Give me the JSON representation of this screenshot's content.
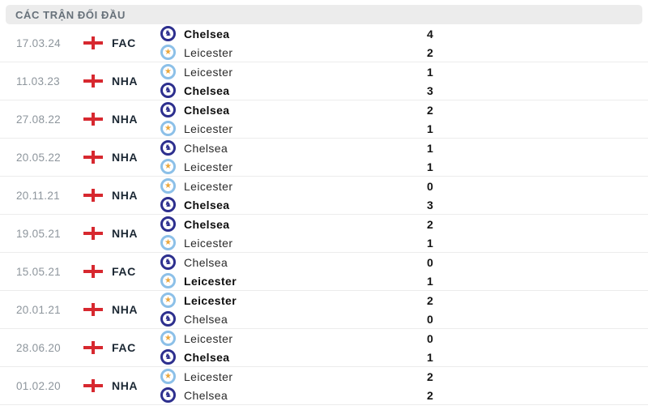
{
  "header": {
    "title": "CÁC TRẬN ĐỐI ĐẦU"
  },
  "colors": {
    "header_bg": "#ececec",
    "header_text": "#67717a",
    "flag_red": "#d7282f",
    "chelsea_navy": "#2d2f8e",
    "leicester_blue": "#8cc0e8",
    "leicester_gold": "#eba73c",
    "date_gray": "#8d959c",
    "separator": "#ececec"
  },
  "badges": {
    "chelsea": {
      "glyph": "♞",
      "ring": "#2d2f8e",
      "glyph_color": "#2d2f8e"
    },
    "leicester": {
      "glyph": "★",
      "ring": "#8cc0e8",
      "glyph_color": "#eba73c"
    }
  },
  "matches": [
    {
      "date": "17.03.24",
      "competition": "FAC",
      "teams": [
        {
          "name": "Chelsea",
          "badge": "chelsea",
          "score": "4",
          "winner": true
        },
        {
          "name": "Leicester",
          "badge": "leicester",
          "score": "2",
          "winner": false
        }
      ]
    },
    {
      "date": "11.03.23",
      "competition": "NHA",
      "teams": [
        {
          "name": "Leicester",
          "badge": "leicester",
          "score": "1",
          "winner": false
        },
        {
          "name": "Chelsea",
          "badge": "chelsea",
          "score": "3",
          "winner": true
        }
      ]
    },
    {
      "date": "27.08.22",
      "competition": "NHA",
      "teams": [
        {
          "name": "Chelsea",
          "badge": "chelsea",
          "score": "2",
          "winner": true
        },
        {
          "name": "Leicester",
          "badge": "leicester",
          "score": "1",
          "winner": false
        }
      ]
    },
    {
      "date": "20.05.22",
      "competition": "NHA",
      "teams": [
        {
          "name": "Chelsea",
          "badge": "chelsea",
          "score": "1",
          "winner": false
        },
        {
          "name": "Leicester",
          "badge": "leicester",
          "score": "1",
          "winner": false
        }
      ]
    },
    {
      "date": "20.11.21",
      "competition": "NHA",
      "teams": [
        {
          "name": "Leicester",
          "badge": "leicester",
          "score": "0",
          "winner": false
        },
        {
          "name": "Chelsea",
          "badge": "chelsea",
          "score": "3",
          "winner": true
        }
      ]
    },
    {
      "date": "19.05.21",
      "competition": "NHA",
      "teams": [
        {
          "name": "Chelsea",
          "badge": "chelsea",
          "score": "2",
          "winner": true
        },
        {
          "name": "Leicester",
          "badge": "leicester",
          "score": "1",
          "winner": false
        }
      ]
    },
    {
      "date": "15.05.21",
      "competition": "FAC",
      "teams": [
        {
          "name": "Chelsea",
          "badge": "chelsea",
          "score": "0",
          "winner": false
        },
        {
          "name": "Leicester",
          "badge": "leicester",
          "score": "1",
          "winner": true
        }
      ]
    },
    {
      "date": "20.01.21",
      "competition": "NHA",
      "teams": [
        {
          "name": "Leicester",
          "badge": "leicester",
          "score": "2",
          "winner": true
        },
        {
          "name": "Chelsea",
          "badge": "chelsea",
          "score": "0",
          "winner": false
        }
      ]
    },
    {
      "date": "28.06.20",
      "competition": "FAC",
      "teams": [
        {
          "name": "Leicester",
          "badge": "leicester",
          "score": "0",
          "winner": false
        },
        {
          "name": "Chelsea",
          "badge": "chelsea",
          "score": "1",
          "winner": true
        }
      ]
    },
    {
      "date": "01.02.20",
      "competition": "NHA",
      "teams": [
        {
          "name": "Leicester",
          "badge": "leicester",
          "score": "2",
          "winner": false
        },
        {
          "name": "Chelsea",
          "badge": "chelsea",
          "score": "2",
          "winner": false
        }
      ]
    }
  ]
}
